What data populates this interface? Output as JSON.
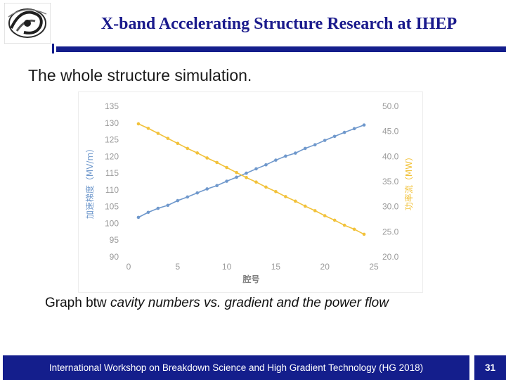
{
  "slide": {
    "title": "X-band Accelerating Structure Research at IHEP",
    "subtitle": "The whole structure simulation.",
    "caption_lead": "Graph btw ",
    "caption_italic": "cavity numbers vs. gradient and the power flow",
    "footer_text": "International Workshop on Breakdown Science and High Gradient Technology (HG 2018)",
    "page_number": "31",
    "logo_icon": "ihep-logo-icon"
  },
  "chart_data": {
    "type": "line",
    "xlabel": "腔号",
    "ylabel": "加速梯度（MV/m）",
    "y2label": "功率流（MW）",
    "xlim": [
      0,
      25
    ],
    "ylim": [
      90,
      135
    ],
    "y2lim": [
      20,
      50
    ],
    "x_ticks": [
      "0",
      "5",
      "10",
      "15",
      "20",
      "25"
    ],
    "y_ticks": [
      "90",
      "95",
      "100",
      "105",
      "110",
      "115",
      "120",
      "125",
      "130",
      "135"
    ],
    "y2_ticks": [
      "20.0",
      "25.0",
      "30.0",
      "35.0",
      "40.0",
      "45.0",
      "50.0"
    ],
    "grid": false,
    "colors": {
      "gradient": "#6f98cc",
      "power": "#f2c23a",
      "axis_text": "#9a9a9a"
    },
    "series": [
      {
        "key": "gradient",
        "axis": "left",
        "x": [
          1,
          2,
          3,
          4,
          5,
          6,
          7,
          8,
          9,
          10,
          11,
          12,
          13,
          14,
          15,
          16,
          17,
          18,
          19,
          20,
          21,
          22,
          23,
          24
        ],
        "y": [
          101.8,
          103.3,
          104.5,
          105.4,
          106.8,
          107.9,
          109.1,
          110.3,
          111.3,
          112.6,
          113.8,
          115.0,
          116.3,
          117.5,
          118.9,
          120.1,
          121.0,
          122.4,
          123.5,
          124.8,
          126.0,
          127.2,
          128.3,
          129.4
        ]
      },
      {
        "key": "power",
        "axis": "right",
        "x": [
          1,
          2,
          3,
          4,
          5,
          6,
          7,
          8,
          9,
          10,
          11,
          12,
          13,
          14,
          15,
          16,
          17,
          18,
          19,
          20,
          21,
          22,
          23,
          24
        ],
        "y": [
          46.5,
          45.6,
          44.6,
          43.6,
          42.6,
          41.6,
          40.7,
          39.7,
          38.8,
          37.8,
          36.8,
          35.8,
          34.9,
          33.9,
          33.0,
          32.0,
          31.1,
          30.1,
          29.2,
          28.2,
          27.3,
          26.3,
          25.5,
          24.5
        ]
      }
    ]
  }
}
